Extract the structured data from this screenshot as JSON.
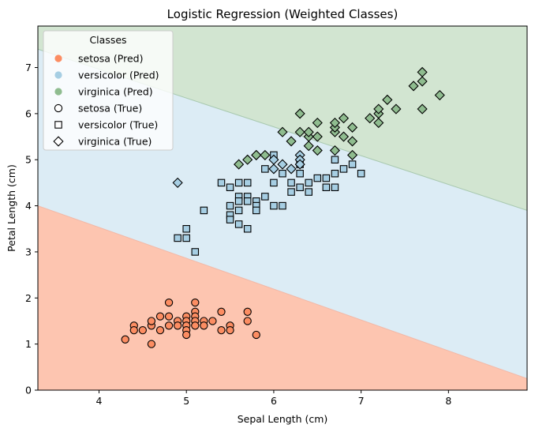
{
  "chart_data": {
    "type": "scatter",
    "title": "Logistic Regression (Weighted Classes)",
    "xlabel": "Sepal Length (cm)",
    "ylabel": "Petal Length (cm)",
    "xlim": [
      3.3,
      8.9
    ],
    "ylim": [
      0,
      7.9
    ],
    "xticks": [
      4,
      5,
      6,
      7,
      8
    ],
    "yticks": [
      0,
      1,
      2,
      3,
      4,
      5,
      6,
      7
    ],
    "grid": false,
    "legend": {
      "title": "Classes",
      "position": "top-left",
      "entries": [
        {
          "label": "setosa (Pred)",
          "kind": "pred",
          "color": "#fc8d62"
        },
        {
          "label": "versicolor (Pred)",
          "kind": "pred",
          "color": "#a6cee3"
        },
        {
          "label": "virginica (Pred)",
          "kind": "pred",
          "color": "#8fbc8f"
        },
        {
          "label": "setosa (True)",
          "kind": "true",
          "marker": "circle"
        },
        {
          "label": "versicolor (True)",
          "kind": "true",
          "marker": "square"
        },
        {
          "label": "virginica (True)",
          "kind": "true",
          "marker": "diamond"
        }
      ]
    },
    "regions": [
      {
        "name": "setosa",
        "color": "#fdc5b0",
        "boundary_upper": [
          [
            3.3,
            4.0
          ],
          [
            8.9,
            0.25
          ]
        ]
      },
      {
        "name": "versicolor",
        "color": "#dcecf5",
        "boundary_upper": [
          [
            3.3,
            7.4
          ],
          [
            8.9,
            3.9
          ]
        ]
      },
      {
        "name": "virginica",
        "color": "#d2e5d1"
      }
    ],
    "colors": {
      "setosa": "#fc8d62",
      "versicolor": "#a6cee3",
      "virginica": "#8fbc8f"
    },
    "series": [
      {
        "marker": "circle",
        "points": [
          [
            4.3,
            1.1
          ],
          [
            4.4,
            1.4
          ],
          [
            4.4,
            1.3
          ],
          [
            4.5,
            1.3
          ],
          [
            4.6,
            1.0
          ],
          [
            4.6,
            1.4
          ],
          [
            4.6,
            1.5
          ],
          [
            4.7,
            1.6
          ],
          [
            4.7,
            1.3
          ],
          [
            4.8,
            1.9
          ],
          [
            4.8,
            1.6
          ],
          [
            4.8,
            1.4
          ],
          [
            4.9,
            1.5
          ],
          [
            4.9,
            1.4
          ],
          [
            5.0,
            1.6
          ],
          [
            5.0,
            1.5
          ],
          [
            5.0,
            1.4
          ],
          [
            5.0,
            1.3
          ],
          [
            5.0,
            1.2
          ],
          [
            5.1,
            1.9
          ],
          [
            5.1,
            1.7
          ],
          [
            5.1,
            1.6
          ],
          [
            5.1,
            1.5
          ],
          [
            5.1,
            1.4
          ],
          [
            5.2,
            1.5
          ],
          [
            5.2,
            1.4
          ],
          [
            5.3,
            1.5
          ],
          [
            5.4,
            1.7
          ],
          [
            5.4,
            1.3
          ],
          [
            5.5,
            1.4
          ],
          [
            5.5,
            1.3
          ],
          [
            5.7,
            1.7
          ],
          [
            5.7,
            1.5
          ],
          [
            5.8,
            1.2
          ]
        ],
        "pred": [
          "setosa",
          "setosa",
          "setosa",
          "setosa",
          "setosa",
          "setosa",
          "setosa",
          "setosa",
          "setosa",
          "setosa",
          "setosa",
          "setosa",
          "setosa",
          "setosa",
          "setosa",
          "setosa",
          "setosa",
          "setosa",
          "setosa",
          "setosa",
          "setosa",
          "setosa",
          "setosa",
          "setosa",
          "setosa",
          "setosa",
          "setosa",
          "setosa",
          "setosa",
          "setosa",
          "setosa",
          "setosa",
          "setosa",
          "setosa"
        ]
      },
      {
        "marker": "square",
        "points": [
          [
            4.9,
            3.3
          ],
          [
            5.0,
            3.3
          ],
          [
            5.0,
            3.5
          ],
          [
            5.1,
            3.0
          ],
          [
            5.2,
            3.9
          ],
          [
            5.4,
            4.5
          ],
          [
            5.5,
            4.4
          ],
          [
            5.5,
            4.0
          ],
          [
            5.5,
            3.8
          ],
          [
            5.5,
            3.7
          ],
          [
            5.6,
            4.5
          ],
          [
            5.6,
            4.2
          ],
          [
            5.6,
            4.1
          ],
          [
            5.6,
            3.9
          ],
          [
            5.6,
            3.6
          ],
          [
            5.7,
            4.5
          ],
          [
            5.7,
            4.2
          ],
          [
            5.7,
            4.1
          ],
          [
            5.7,
            3.5
          ],
          [
            5.8,
            4.1
          ],
          [
            5.8,
            4.0
          ],
          [
            5.8,
            3.9
          ],
          [
            5.9,
            4.8
          ],
          [
            5.9,
            4.2
          ],
          [
            6.0,
            5.1
          ],
          [
            6.0,
            4.5
          ],
          [
            6.0,
            4.0
          ],
          [
            6.1,
            4.7
          ],
          [
            6.1,
            4.0
          ],
          [
            6.2,
            4.5
          ],
          [
            6.2,
            4.3
          ],
          [
            6.3,
            4.9
          ],
          [
            6.3,
            4.7
          ],
          [
            6.3,
            4.4
          ],
          [
            6.4,
            4.5
          ],
          [
            6.4,
            4.3
          ],
          [
            6.5,
            4.6
          ],
          [
            6.6,
            4.6
          ],
          [
            6.6,
            4.4
          ],
          [
            6.7,
            5.0
          ],
          [
            6.7,
            4.7
          ],
          [
            6.7,
            4.4
          ],
          [
            6.8,
            4.8
          ],
          [
            6.9,
            4.9
          ],
          [
            7.0,
            4.7
          ]
        ],
        "pred": [
          "versicolor",
          "versicolor",
          "versicolor",
          "versicolor",
          "versicolor",
          "versicolor",
          "versicolor",
          "versicolor",
          "versicolor",
          "versicolor",
          "versicolor",
          "versicolor",
          "versicolor",
          "versicolor",
          "versicolor",
          "versicolor",
          "versicolor",
          "versicolor",
          "versicolor",
          "versicolor",
          "versicolor",
          "versicolor",
          "versicolor",
          "versicolor",
          "versicolor",
          "versicolor",
          "versicolor",
          "versicolor",
          "versicolor",
          "versicolor",
          "versicolor",
          "versicolor",
          "versicolor",
          "versicolor",
          "versicolor",
          "versicolor",
          "versicolor",
          "versicolor",
          "versicolor",
          "versicolor",
          "versicolor",
          "versicolor",
          "versicolor",
          "versicolor",
          "versicolor"
        ]
      },
      {
        "marker": "diamond",
        "points": [
          [
            4.9,
            4.5
          ],
          [
            5.6,
            4.9
          ],
          [
            5.7,
            5.0
          ],
          [
            5.8,
            5.1
          ],
          [
            5.8,
            5.1
          ],
          [
            5.9,
            5.1
          ],
          [
            6.0,
            4.8
          ],
          [
            6.0,
            5.0
          ],
          [
            6.1,
            4.9
          ],
          [
            6.2,
            4.8
          ],
          [
            6.3,
            5.1
          ],
          [
            6.3,
            5.0
          ],
          [
            6.3,
            4.9
          ],
          [
            6.1,
            5.6
          ],
          [
            6.2,
            5.4
          ],
          [
            6.3,
            5.6
          ],
          [
            6.3,
            6.0
          ],
          [
            6.4,
            5.3
          ],
          [
            6.4,
            5.5
          ],
          [
            6.4,
            5.6
          ],
          [
            6.5,
            5.2
          ],
          [
            6.5,
            5.5
          ],
          [
            6.5,
            5.8
          ],
          [
            6.7,
            5.2
          ],
          [
            6.7,
            5.6
          ],
          [
            6.7,
            5.7
          ],
          [
            6.7,
            5.8
          ],
          [
            6.8,
            5.5
          ],
          [
            6.8,
            5.9
          ],
          [
            6.9,
            5.1
          ],
          [
            6.9,
            5.4
          ],
          [
            6.9,
            5.7
          ],
          [
            7.1,
            5.9
          ],
          [
            7.2,
            5.8
          ],
          [
            7.2,
            6.0
          ],
          [
            7.2,
            6.1
          ],
          [
            7.3,
            6.3
          ],
          [
            7.4,
            6.1
          ],
          [
            7.6,
            6.6
          ],
          [
            7.7,
            6.1
          ],
          [
            7.7,
            6.7
          ],
          [
            7.7,
            6.9
          ],
          [
            7.9,
            6.4
          ]
        ],
        "pred": [
          "versicolor",
          "virginica",
          "virginica",
          "virginica",
          "virginica",
          "virginica",
          "versicolor",
          "versicolor",
          "versicolor",
          "versicolor",
          "versicolor",
          "versicolor",
          "versicolor",
          "virginica",
          "virginica",
          "virginica",
          "virginica",
          "virginica",
          "virginica",
          "virginica",
          "virginica",
          "virginica",
          "virginica",
          "virginica",
          "virginica",
          "virginica",
          "virginica",
          "virginica",
          "virginica",
          "virginica",
          "virginica",
          "virginica",
          "virginica",
          "virginica",
          "virginica",
          "virginica",
          "virginica",
          "virginica",
          "virginica",
          "virginica",
          "virginica",
          "virginica",
          "virginica"
        ]
      }
    ]
  }
}
